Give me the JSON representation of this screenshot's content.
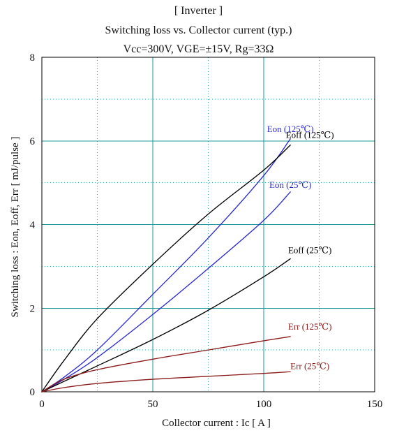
{
  "chart_data": {
    "type": "line",
    "title": "[ Inverter ]",
    "subtitle": "Switching loss vs. Collector current (typ.)",
    "conditions": "Vcc=300V, VGE=±15V, Rg=33Ω",
    "xlabel": "Collector current : Ic [ A ]",
    "ylabel": "Switching loss : Eon, Eoff, Err [ mJ/pulse ]",
    "xlim": [
      0,
      150
    ],
    "ylim": [
      0,
      8
    ],
    "x_ticks": [
      0,
      50,
      100,
      150
    ],
    "y_ticks": [
      0,
      2,
      4,
      6,
      8
    ],
    "grid": true,
    "colors": {
      "axis": "#000000",
      "major_grid": "#1c9a9a",
      "minor_grid": "#2aa7b0",
      "eon": "#2b2bcc",
      "eoff": "#000000",
      "err": "#8b1a1a"
    },
    "series": [
      {
        "name": "Eon (125℃)",
        "color": "#2b2bcc",
        "x": [
          0,
          10,
          25,
          50,
          75,
          100,
          112
        ],
        "values": [
          0,
          0.35,
          1.0,
          2.33,
          3.68,
          5.17,
          6.05
        ]
      },
      {
        "name": "Eoff (125℃)",
        "color": "#000000",
        "x": [
          0,
          10,
          25,
          50,
          75,
          100,
          112
        ],
        "values": [
          0,
          0.75,
          1.75,
          3.05,
          4.25,
          5.3,
          5.9
        ]
      },
      {
        "name": "Eon (25℃)",
        "color": "#2b2bcc",
        "x": [
          0,
          10,
          25,
          50,
          75,
          100,
          112
        ],
        "values": [
          0,
          0.3,
          0.82,
          1.85,
          2.95,
          4.1,
          4.78
        ]
      },
      {
        "name": "Eoff (25℃)",
        "color": "#000000",
        "x": [
          0,
          10,
          25,
          50,
          75,
          100,
          112
        ],
        "values": [
          0,
          0.25,
          0.62,
          1.25,
          1.95,
          2.75,
          3.18
        ]
      },
      {
        "name": "Err (125℃)",
        "color": "#8b1a1a",
        "x": [
          0,
          10,
          25,
          50,
          75,
          100,
          112
        ],
        "values": [
          0,
          0.3,
          0.53,
          0.78,
          1.0,
          1.22,
          1.32
        ]
      },
      {
        "name": "Err (25℃)",
        "color": "#8b1a1a",
        "x": [
          0,
          10,
          25,
          50,
          75,
          100,
          112
        ],
        "values": [
          0,
          0.1,
          0.2,
          0.3,
          0.37,
          0.44,
          0.48
        ]
      }
    ]
  }
}
